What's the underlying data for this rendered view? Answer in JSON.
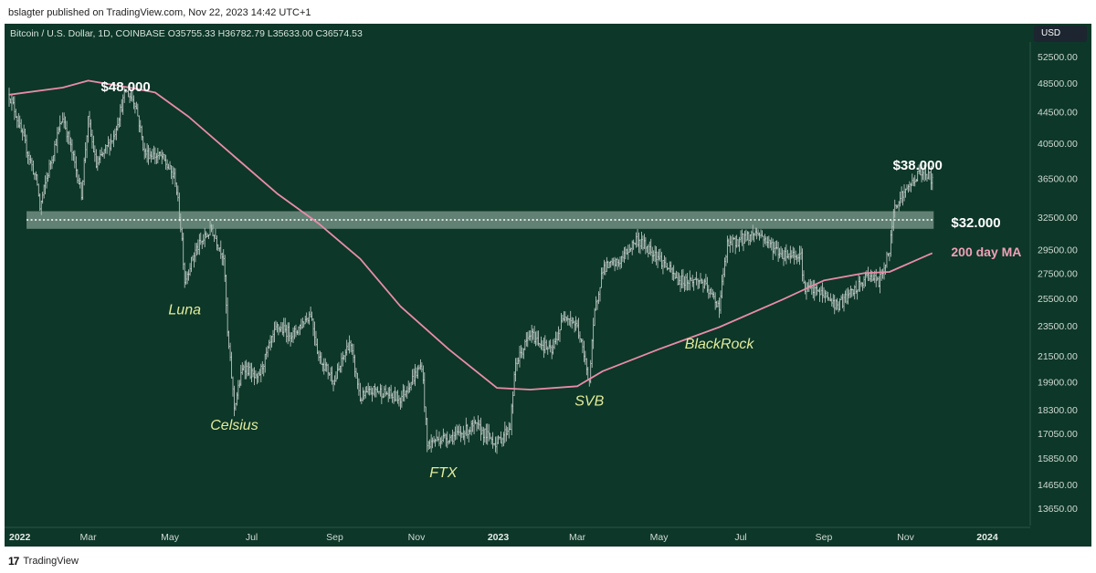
{
  "header": {
    "publisher_line": "bslagter published on TradingView.com, Nov 22, 2023 14:42 UTC+1",
    "symbol_line": "Bitcoin / U.S. Dollar, 1D, COINBASE  O35755.33  H36782.79  L35633.00  C36574.53"
  },
  "currency_badge": "USD",
  "footer": {
    "logo_mark": "17",
    "logo_text": "TradingView"
  },
  "chart_data": {
    "type": "candlestick",
    "title": "Bitcoin / U.S. Dollar, 1D, COINBASE",
    "ohlc_last": {
      "open": 35755.33,
      "high": 36782.79,
      "low": 35633.0,
      "close": 36574.53
    },
    "y_scale": "log",
    "ylim": [
      13000,
      55000
    ],
    "y_ticks": [
      52500,
      48500,
      44500,
      40500,
      36500,
      32500,
      29500,
      27500,
      25500,
      23500,
      21500,
      19900,
      18300,
      17050,
      15850,
      14650,
      13650
    ],
    "y_tick_labels": [
      "52500.00",
      "48500.00",
      "44500.00",
      "40500.00",
      "36500.00",
      "32500.00",
      "29500.00",
      "27500.00",
      "25500.00",
      "23500.00",
      "21500.00",
      "19900.00",
      "18300.00",
      "17050.00",
      "15850.00",
      "14650.00",
      "13650.00"
    ],
    "x_range": [
      "2022-01-01",
      "2024-01-31"
    ],
    "x_ticks": [
      {
        "date": "2022-01-01",
        "label": "2022",
        "bold": true
      },
      {
        "date": "2022-03-01",
        "label": "Mar",
        "bold": false
      },
      {
        "date": "2022-05-01",
        "label": "May",
        "bold": false
      },
      {
        "date": "2022-07-01",
        "label": "Jul",
        "bold": false
      },
      {
        "date": "2022-09-01",
        "label": "Sep",
        "bold": false
      },
      {
        "date": "2022-11-01",
        "label": "Nov",
        "bold": false
      },
      {
        "date": "2023-01-01",
        "label": "2023",
        "bold": true
      },
      {
        "date": "2023-03-01",
        "label": "Mar",
        "bold": false
      },
      {
        "date": "2023-05-01",
        "label": "May",
        "bold": false
      },
      {
        "date": "2023-07-01",
        "label": "Jul",
        "bold": false
      },
      {
        "date": "2023-09-01",
        "label": "Sep",
        "bold": false
      },
      {
        "date": "2023-11-01",
        "label": "Nov",
        "bold": false
      },
      {
        "date": "2024-01-01",
        "label": "2024",
        "bold": true
      }
    ],
    "price_path": [
      [
        "2022-01-01",
        47000
      ],
      [
        "2022-01-05",
        45000
      ],
      [
        "2022-01-10",
        42000
      ],
      [
        "2022-01-22",
        36000
      ],
      [
        "2022-01-24",
        33500
      ],
      [
        "2022-02-01",
        38500
      ],
      [
        "2022-02-10",
        44000
      ],
      [
        "2022-02-24",
        35000
      ],
      [
        "2022-03-01",
        43500
      ],
      [
        "2022-03-07",
        38000
      ],
      [
        "2022-03-20",
        41500
      ],
      [
        "2022-03-29",
        47500
      ],
      [
        "2022-04-05",
        46000
      ],
      [
        "2022-04-12",
        39500
      ],
      [
        "2022-04-25",
        39000
      ],
      [
        "2022-05-05",
        36500
      ],
      [
        "2022-05-10",
        30500
      ],
      [
        "2022-05-12",
        27000
      ],
      [
        "2022-05-20",
        29500
      ],
      [
        "2022-06-01",
        31500
      ],
      [
        "2022-06-10",
        29000
      ],
      [
        "2022-06-13",
        23000
      ],
      [
        "2022-06-18",
        18500
      ],
      [
        "2022-06-25",
        21000
      ],
      [
        "2022-07-05",
        20000
      ],
      [
        "2022-07-20",
        23500
      ],
      [
        "2022-08-01",
        23000
      ],
      [
        "2022-08-14",
        24500
      ],
      [
        "2022-08-20",
        21500
      ],
      [
        "2022-09-01",
        20000
      ],
      [
        "2022-09-12",
        22500
      ],
      [
        "2022-09-20",
        19000
      ],
      [
        "2022-10-01",
        19500
      ],
      [
        "2022-10-20",
        19000
      ],
      [
        "2022-11-01",
        20500
      ],
      [
        "2022-11-05",
        21000
      ],
      [
        "2022-11-09",
        16500
      ],
      [
        "2022-11-15",
        16800
      ],
      [
        "2022-12-01",
        17000
      ],
      [
        "2022-12-15",
        17500
      ],
      [
        "2022-12-31",
        16600
      ],
      [
        "2023-01-10",
        17500
      ],
      [
        "2023-01-14",
        21000
      ],
      [
        "2023-01-25",
        23000
      ],
      [
        "2023-02-10",
        21800
      ],
      [
        "2023-02-20",
        24500
      ],
      [
        "2023-03-01",
        23500
      ],
      [
        "2023-03-10",
        20000
      ],
      [
        "2023-03-14",
        24500
      ],
      [
        "2023-03-20",
        28000
      ],
      [
        "2023-04-01",
        28500
      ],
      [
        "2023-04-14",
        30500
      ],
      [
        "2023-04-28",
        29300
      ],
      [
        "2023-05-15",
        27000
      ],
      [
        "2023-06-01",
        27000
      ],
      [
        "2023-06-15",
        25000
      ],
      [
        "2023-06-21",
        30000
      ],
      [
        "2023-07-01",
        30500
      ],
      [
        "2023-07-13",
        31200
      ],
      [
        "2023-07-31",
        29200
      ],
      [
        "2023-08-15",
        29200
      ],
      [
        "2023-08-17",
        26500
      ],
      [
        "2023-09-01",
        25900
      ],
      [
        "2023-09-11",
        25000
      ],
      [
        "2023-09-25",
        26300
      ],
      [
        "2023-10-05",
        27500
      ],
      [
        "2023-10-12",
        26800
      ],
      [
        "2023-10-20",
        29500
      ],
      [
        "2023-10-24",
        34000
      ],
      [
        "2023-11-01",
        35200
      ],
      [
        "2023-11-10",
        37000
      ],
      [
        "2023-11-15",
        37500
      ],
      [
        "2023-11-21",
        36500
      ]
    ],
    "sma_200_day": [
      [
        "2022-01-01",
        47000
      ],
      [
        "2022-02-10",
        48000
      ],
      [
        "2022-03-01",
        49000
      ],
      [
        "2022-04-01",
        48000
      ],
      [
        "2022-04-20",
        47300
      ],
      [
        "2022-05-15",
        44000
      ],
      [
        "2022-06-15",
        39500
      ],
      [
        "2022-07-20",
        35000
      ],
      [
        "2022-08-20",
        32000
      ],
      [
        "2022-09-20",
        28800
      ],
      [
        "2022-10-20",
        25000
      ],
      [
        "2022-11-25",
        22000
      ],
      [
        "2022-12-31",
        19600
      ],
      [
        "2023-01-25",
        19500
      ],
      [
        "2023-03-01",
        19700
      ],
      [
        "2023-03-20",
        20600
      ],
      [
        "2023-05-01",
        22000
      ],
      [
        "2023-06-15",
        23500
      ],
      [
        "2023-08-01",
        25500
      ],
      [
        "2023-09-01",
        27000
      ],
      [
        "2023-10-01",
        27600
      ],
      [
        "2023-10-20",
        27700
      ],
      [
        "2023-11-21",
        29300
      ]
    ],
    "support_zone": {
      "low": 31500,
      "high": 33200,
      "start": "2022-01-14",
      "end": "2023-11-22",
      "label": "$32.000"
    },
    "annotations": [
      {
        "text": "$48.000",
        "date": "2022-03-29",
        "price": 48000,
        "kind": "price"
      },
      {
        "text": "$38.000",
        "date": "2023-11-10",
        "price": 38000,
        "kind": "price"
      },
      {
        "text": "$32.000",
        "date": "2023-12-05",
        "price": 32000,
        "kind": "price"
      },
      {
        "text": "200 day MA",
        "date": "2023-12-05",
        "price": 29300,
        "kind": "ma"
      },
      {
        "text": "Luna",
        "date": "2022-05-12",
        "price": 24700,
        "kind": "event"
      },
      {
        "text": "Celsius",
        "date": "2022-06-18",
        "price": 17500,
        "kind": "event"
      },
      {
        "text": "FTX",
        "date": "2022-11-21",
        "price": 15200,
        "kind": "event"
      },
      {
        "text": "SVB",
        "date": "2023-03-10",
        "price": 18800,
        "kind": "event"
      },
      {
        "text": "BlackRock",
        "date": "2023-06-15",
        "price": 22300,
        "kind": "event"
      }
    ],
    "colors": {
      "background": "#0d3728",
      "candles": "#c9d3cf",
      "sma": "#e98ca9",
      "support_zone": "#a9bfb4",
      "support_line": "#ffffff"
    },
    "grid": false
  }
}
